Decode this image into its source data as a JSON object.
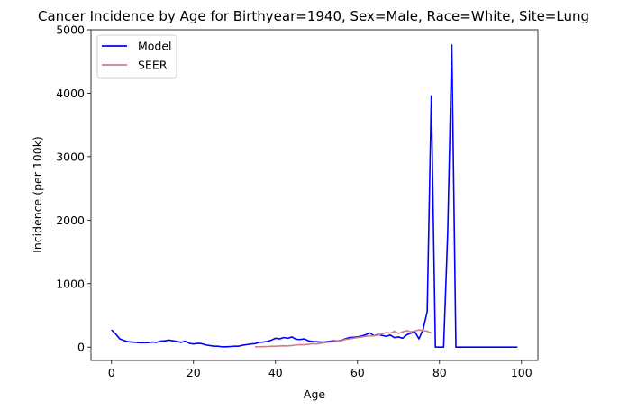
{
  "chart_data": {
    "type": "line",
    "title": "Cancer Incidence by Age for Birthyear=1940, Sex=Male, Race=White, Site=Lung",
    "xlabel": "Age",
    "ylabel": "Incidence (per 100k)",
    "xlim": [
      -5,
      104
    ],
    "ylim": [
      -210,
      5000
    ],
    "xticks": [
      0,
      20,
      40,
      60,
      80,
      100
    ],
    "yticks": [
      0,
      1000,
      2000,
      3000,
      4000,
      5000
    ],
    "grid": false,
    "legend_position": "upper-left",
    "series": [
      {
        "name": "Model",
        "color": "#0000ff",
        "x": [
          0,
          1,
          2,
          3,
          4,
          5,
          6,
          7,
          8,
          9,
          10,
          11,
          12,
          13,
          14,
          15,
          16,
          17,
          18,
          19,
          20,
          21,
          22,
          23,
          24,
          25,
          26,
          27,
          28,
          29,
          30,
          31,
          32,
          33,
          34,
          35,
          36,
          37,
          38,
          39,
          40,
          41,
          42,
          43,
          44,
          45,
          46,
          47,
          48,
          49,
          50,
          51,
          52,
          53,
          54,
          55,
          56,
          57,
          58,
          59,
          60,
          61,
          62,
          63,
          64,
          65,
          66,
          67,
          68,
          69,
          70,
          71,
          72,
          73,
          74,
          75,
          76,
          77,
          78,
          79,
          80,
          81,
          82,
          83,
          84,
          85,
          86,
          87,
          88,
          89,
          90,
          91,
          92,
          93,
          94,
          95,
          96,
          97,
          98,
          99
        ],
        "y": [
          270,
          210,
          130,
          105,
          85,
          80,
          75,
          70,
          70,
          72,
          80,
          75,
          95,
          100,
          110,
          100,
          90,
          75,
          95,
          60,
          50,
          60,
          55,
          35,
          25,
          15,
          15,
          5,
          5,
          10,
          15,
          15,
          30,
          40,
          50,
          55,
          75,
          80,
          90,
          110,
          140,
          130,
          150,
          140,
          160,
          125,
          120,
          130,
          100,
          90,
          85,
          80,
          80,
          90,
          100,
          95,
          105,
          130,
          150,
          155,
          160,
          175,
          195,
          225,
          180,
          200,
          185,
          170,
          190,
          150,
          160,
          140,
          195,
          220,
          240,
          130,
          280,
          560,
          3960,
          0,
          0,
          0,
          1800,
          4760,
          0,
          0,
          0,
          0,
          0,
          0,
          0,
          0,
          0,
          0,
          0,
          0,
          0,
          0,
          0,
          0
        ]
      },
      {
        "name": "SEER",
        "color": "#c98088",
        "x": [
          35,
          36,
          37,
          38,
          39,
          40,
          41,
          42,
          43,
          44,
          45,
          46,
          47,
          48,
          49,
          50,
          51,
          52,
          53,
          54,
          55,
          56,
          57,
          58,
          59,
          60,
          61,
          62,
          63,
          64,
          65,
          66,
          67,
          68,
          69,
          70,
          71,
          72,
          73,
          74,
          75,
          76,
          77,
          78
        ],
        "y": [
          5,
          5,
          8,
          10,
          12,
          15,
          18,
          22,
          20,
          25,
          35,
          40,
          38,
          45,
          55,
          50,
          60,
          70,
          80,
          85,
          90,
          100,
          120,
          130,
          140,
          150,
          160,
          170,
          175,
          180,
          190,
          210,
          230,
          220,
          250,
          215,
          240,
          260,
          240,
          255,
          270,
          260,
          250,
          220
        ]
      }
    ]
  }
}
